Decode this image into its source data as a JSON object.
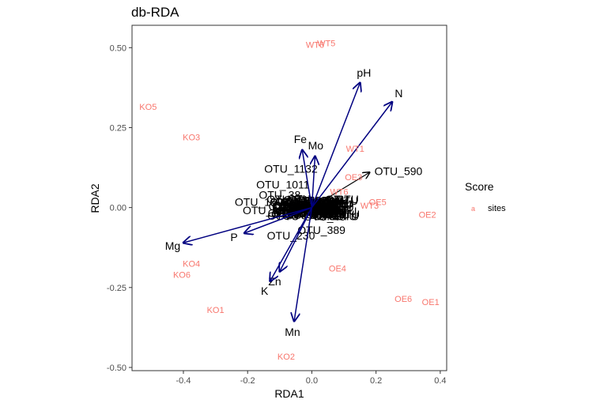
{
  "chart_data": {
    "type": "scatter",
    "title": "db-RDA",
    "xlabel": "RDA1",
    "ylabel": "RDA2",
    "xlim": [
      -0.56,
      0.42
    ],
    "ylim": [
      -0.51,
      0.57
    ],
    "x_ticks": [
      -0.4,
      -0.2,
      0.0,
      0.2,
      0.4
    ],
    "x_tick_labels": [
      "-0.4",
      "-0.2",
      "0.0",
      "0.2",
      "0.4"
    ],
    "y_ticks": [
      -0.5,
      -0.25,
      0.0,
      0.25,
      0.5
    ],
    "y_tick_labels": [
      "-0.50",
      "-0.25",
      "0.00",
      "0.25",
      "0.50"
    ],
    "grid": false,
    "legend": {
      "title": "Score",
      "placement": "right",
      "entries": [
        {
          "key": "a",
          "label": "sites",
          "color": "#F8766D"
        }
      ]
    },
    "site_color": "#F8766D",
    "arrow_color": "#000080",
    "otu_arrow_color": "#000000",
    "sites": [
      {
        "label": "WT6",
        "x": 0.01,
        "y": 0.51
      },
      {
        "label": "WT5",
        "x": 0.045,
        "y": 0.515
      },
      {
        "label": "KO5",
        "x": -0.51,
        "y": 0.315
      },
      {
        "label": "KO3",
        "x": -0.375,
        "y": 0.22
      },
      {
        "label": "WT1",
        "x": 0.135,
        "y": 0.185
      },
      {
        "label": "OE3",
        "x": 0.13,
        "y": 0.095
      },
      {
        "label": "WT6",
        "x": 0.085,
        "y": 0.05
      },
      {
        "label": "OE5",
        "x": 0.205,
        "y": 0.018
      },
      {
        "label": "WT3",
        "x": 0.18,
        "y": 0.007
      },
      {
        "label": "OE2",
        "x": 0.36,
        "y": -0.022
      },
      {
        "label": "KO4",
        "x": -0.375,
        "y": -0.175
      },
      {
        "label": "KO6",
        "x": -0.405,
        "y": -0.21
      },
      {
        "label": "OE4",
        "x": 0.08,
        "y": -0.19
      },
      {
        "label": "OE6",
        "x": 0.285,
        "y": -0.285
      },
      {
        "label": "OE1",
        "x": 0.37,
        "y": -0.295
      },
      {
        "label": "KO1",
        "x": -0.3,
        "y": -0.32
      },
      {
        "label": "KO2",
        "x": -0.08,
        "y": -0.465
      }
    ],
    "env_vectors": [
      {
        "label": "pH",
        "x": 0.15,
        "y": 0.39
      },
      {
        "label": "N",
        "x": 0.25,
        "y": 0.33
      },
      {
        "label": "Fe",
        "x": -0.03,
        "y": 0.18
      },
      {
        "label": "Mo",
        "x": 0.01,
        "y": 0.16
      },
      {
        "label": "Mg",
        "x": -0.4,
        "y": -0.11
      },
      {
        "label": "P",
        "x": -0.21,
        "y": -0.08
      },
      {
        "label": "Zn",
        "x": -0.1,
        "y": -0.2
      },
      {
        "label": "K",
        "x": -0.13,
        "y": -0.23
      },
      {
        "label": "Mn",
        "x": -0.055,
        "y": -0.355
      }
    ],
    "otu_vectors": [
      {
        "label": "OTU_590",
        "x": 0.18,
        "y": 0.11
      }
    ],
    "otu_labels": [
      {
        "label": "OTU_1132",
        "x": -0.065,
        "y": 0.122
      },
      {
        "label": "OTU_1011",
        "x": -0.09,
        "y": 0.072
      },
      {
        "label": "OTU_590",
        "x": 0.195,
        "y": 0.114
      },
      {
        "label": "OTU_15",
        "x": -0.175,
        "y": 0.018
      },
      {
        "label": "OTU_38",
        "x": -0.1,
        "y": 0.04
      },
      {
        "label": "OTU_92",
        "x": -0.15,
        "y": -0.008
      },
      {
        "label": "OTU_5",
        "x": -0.035,
        "y": 0.0
      },
      {
        "label": "OTU_64",
        "x": 0.06,
        "y": 0.012
      },
      {
        "label": "OTU_48",
        "x": 0.04,
        "y": -0.028
      },
      {
        "label": "OTU_389",
        "x": 0.03,
        "y": -0.07
      },
      {
        "label": "OTU_230",
        "x": -0.065,
        "y": -0.088
      }
    ]
  }
}
